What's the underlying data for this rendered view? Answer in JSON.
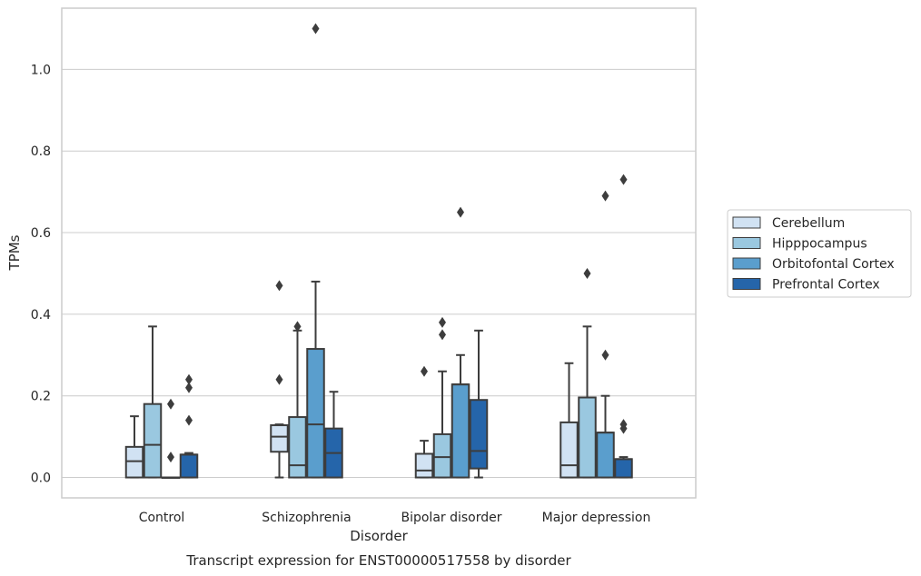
{
  "chart_data": {
    "type": "boxplot",
    "title": "Transcript expression for ENST00000517558 by disorder",
    "xlabel": "Disorder",
    "ylabel": "TPMs",
    "ylim": [
      -0.05,
      1.15
    ],
    "yticks": [
      0.0,
      0.2,
      0.4,
      0.6,
      0.8,
      1.0
    ],
    "ytick_labels": [
      "0.0",
      "0.2",
      "0.4",
      "0.6",
      "0.8",
      "1.0"
    ],
    "grid": "horizontal",
    "legend_position": "right",
    "categories": [
      "Control",
      "Schizophrenia",
      "Bipolar disorder",
      "Major depression"
    ],
    "series": [
      {
        "name": "Cerebellum",
        "color": "#d1e2f3",
        "boxes": [
          {
            "whislo": 0.0,
            "q1": 0.0,
            "med": 0.04,
            "q3": 0.075,
            "whishi": 0.15,
            "fliers": []
          },
          {
            "whislo": 0.0,
            "q1": 0.063,
            "med": 0.1,
            "q3": 0.128,
            "whishi": 0.13,
            "fliers": [
              0.47,
              0.24
            ]
          },
          {
            "whislo": 0.0,
            "q1": 0.0,
            "med": 0.017,
            "q3": 0.058,
            "whishi": 0.09,
            "fliers": [
              0.26
            ]
          },
          {
            "whislo": 0.0,
            "q1": 0.0,
            "med": 0.03,
            "q3": 0.135,
            "whishi": 0.28,
            "fliers": []
          }
        ]
      },
      {
        "name": "Hipppocampus",
        "color": "#9ac8e0",
        "boxes": [
          {
            "whislo": 0.0,
            "q1": 0.0,
            "med": 0.08,
            "q3": 0.18,
            "whishi": 0.37,
            "fliers": []
          },
          {
            "whislo": 0.0,
            "q1": 0.0,
            "med": 0.03,
            "q3": 0.148,
            "whishi": 0.36,
            "fliers": [
              0.37
            ]
          },
          {
            "whislo": 0.0,
            "q1": 0.0,
            "med": 0.05,
            "q3": 0.106,
            "whishi": 0.26,
            "fliers": [
              0.38,
              0.35
            ]
          },
          {
            "whislo": 0.0,
            "q1": 0.0,
            "med": 0.196,
            "q3": 0.196,
            "whishi": 0.37,
            "fliers": [
              0.5
            ]
          }
        ]
      },
      {
        "name": "Orbitofontal Cortex",
        "color": "#5a9ecd",
        "boxes": [
          {
            "whislo": 0.0,
            "q1": 0.0,
            "med": 0.0,
            "q3": 0.0,
            "whishi": 0.0,
            "fliers": [
              0.18,
              0.05
            ]
          },
          {
            "whislo": 0.0,
            "q1": 0.0,
            "med": 0.13,
            "q3": 0.315,
            "whishi": 0.48,
            "fliers": [
              1.1
            ]
          },
          {
            "whislo": 0.0,
            "q1": 0.0,
            "med": 0.228,
            "q3": 0.228,
            "whishi": 0.3,
            "fliers": [
              0.65
            ]
          },
          {
            "whislo": 0.0,
            "q1": 0.0,
            "med": 0.11,
            "q3": 0.11,
            "whishi": 0.2,
            "fliers": [
              0.69,
              0.3
            ]
          }
        ]
      },
      {
        "name": "Prefrontal Cortex",
        "color": "#2565aa",
        "boxes": [
          {
            "whislo": 0.0,
            "q1": 0.0,
            "med": 0.056,
            "q3": 0.056,
            "whishi": 0.06,
            "fliers": [
              0.24,
              0.22,
              0.14
            ]
          },
          {
            "whislo": 0.0,
            "q1": 0.0,
            "med": 0.06,
            "q3": 0.12,
            "whishi": 0.21,
            "fliers": []
          },
          {
            "whislo": 0.0,
            "q1": 0.022,
            "med": 0.065,
            "q3": 0.19,
            "whishi": 0.36,
            "fliers": []
          },
          {
            "whislo": 0.0,
            "q1": 0.0,
            "med": 0.045,
            "q3": 0.045,
            "whishi": 0.05,
            "fliers": [
              0.73,
              0.13,
              0.12
            ]
          }
        ]
      }
    ]
  }
}
